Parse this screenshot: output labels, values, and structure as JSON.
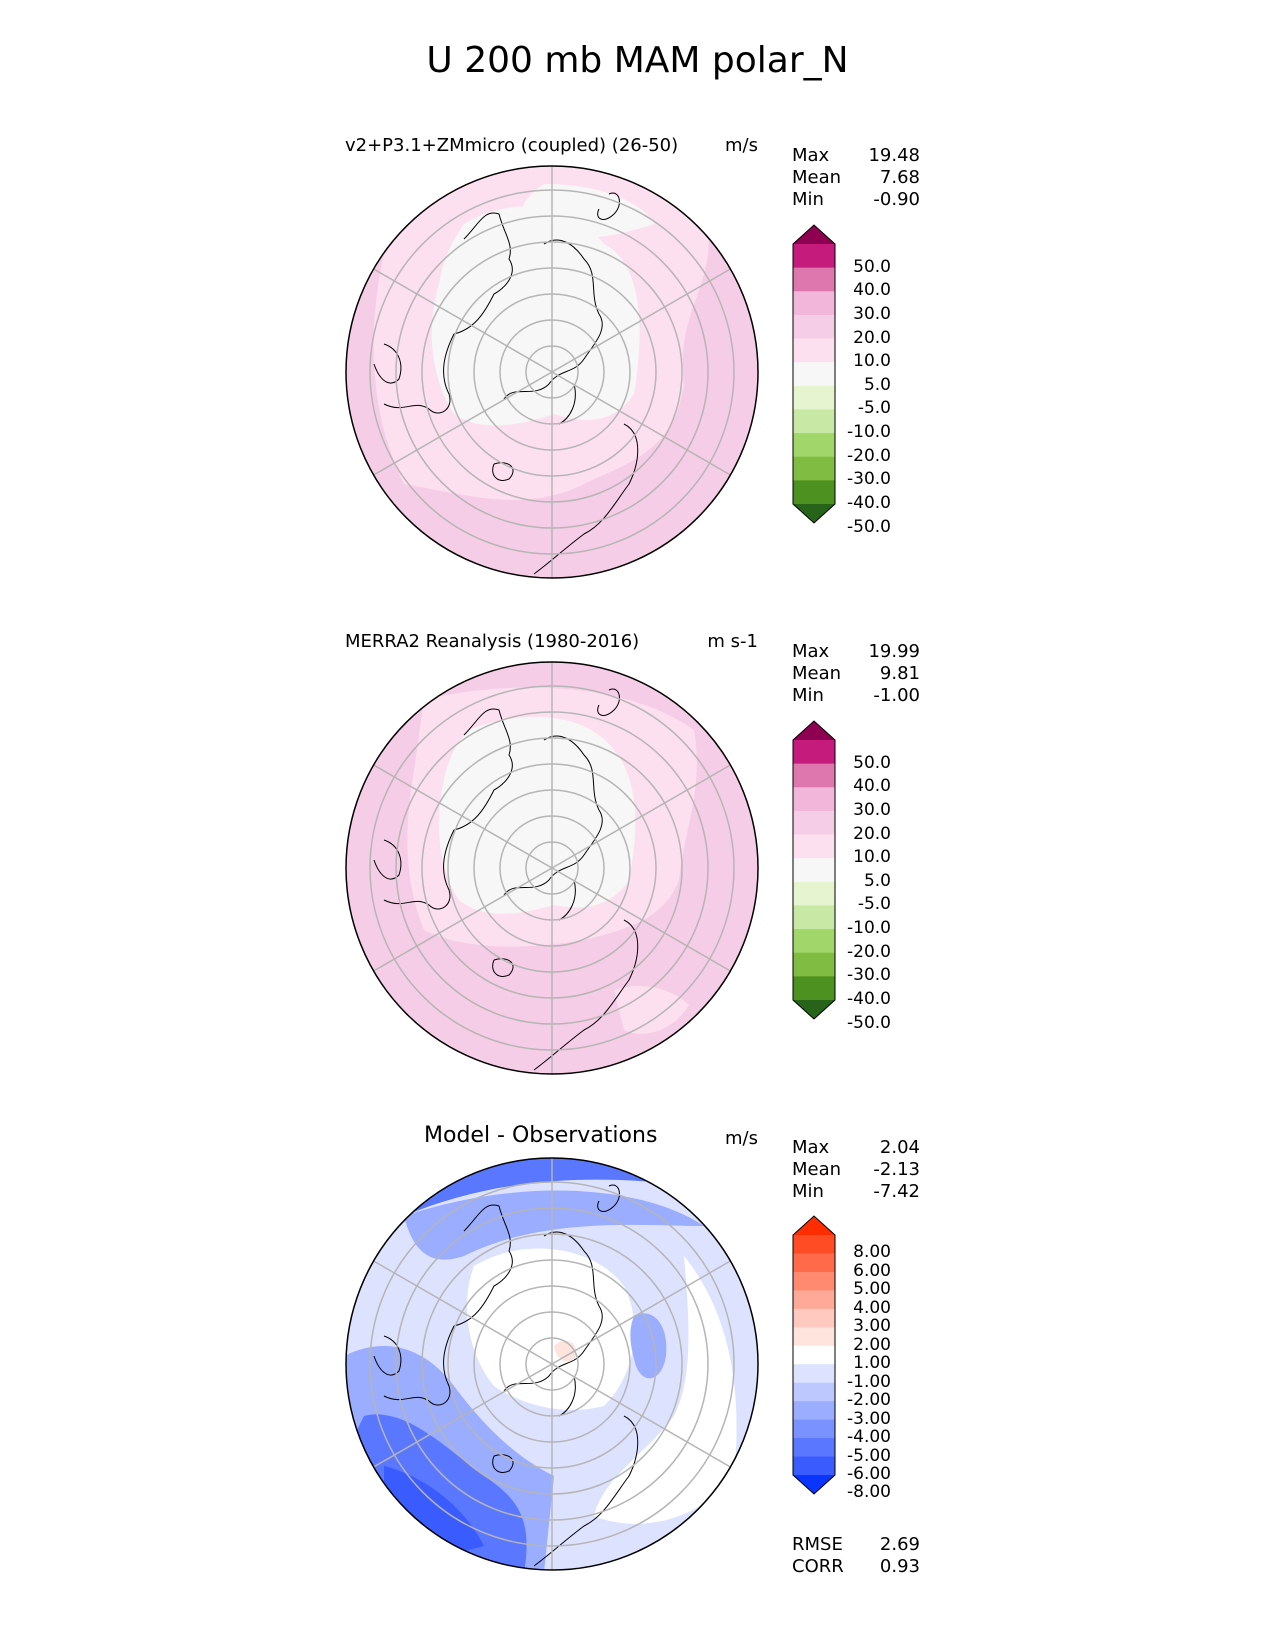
{
  "title": "U 200 mb MAM polar_N",
  "panels": [
    {
      "title": "v2+P3.1+ZMmicro (coupled) (26-50)",
      "units": "m/s",
      "stats": [
        {
          "label": "Max",
          "value": "19.48"
        },
        {
          "label": "Mean",
          "value": "7.68"
        },
        {
          "label": "Min",
          "value": "-0.90"
        }
      ],
      "colorbar": {
        "ticks": [
          "50.0",
          "40.0",
          "30.0",
          "20.0",
          "10.0",
          "5.0",
          "-5.0",
          "-10.0",
          "-20.0",
          "-30.0",
          "-40.0",
          "-50.0"
        ],
        "colors": [
          "#8e0152",
          "#c51b7d",
          "#de77ae",
          "#f1b6da",
          "#f6cde6",
          "#fde0ef",
          "#f7f7f7",
          "#e6f5d0",
          "#c7e9a5",
          "#a1d76a",
          "#7fbc41",
          "#4d9221",
          "#276419"
        ]
      }
    },
    {
      "title": "MERRA2 Reanalysis (1980-2016)",
      "units": "m s-1",
      "stats": [
        {
          "label": "Max",
          "value": "19.99"
        },
        {
          "label": "Mean",
          "value": "9.81"
        },
        {
          "label": "Min",
          "value": "-1.00"
        }
      ],
      "colorbar": {
        "ticks": [
          "50.0",
          "40.0",
          "30.0",
          "20.0",
          "10.0",
          "5.0",
          "-5.0",
          "-10.0",
          "-20.0",
          "-30.0",
          "-40.0",
          "-50.0"
        ],
        "colors": [
          "#8e0152",
          "#c51b7d",
          "#de77ae",
          "#f1b6da",
          "#f6cde6",
          "#fde0ef",
          "#f7f7f7",
          "#e6f5d0",
          "#c7e9a5",
          "#a1d76a",
          "#7fbc41",
          "#4d9221",
          "#276419"
        ]
      }
    },
    {
      "title": "Model - Observations",
      "units": "m/s",
      "stats": [
        {
          "label": "Max",
          "value": "2.04"
        },
        {
          "label": "Mean",
          "value": "-2.13"
        },
        {
          "label": "Min",
          "value": "-7.42"
        }
      ],
      "colorbar": {
        "ticks": [
          "8.00",
          "6.00",
          "5.00",
          "4.00",
          "3.00",
          "2.00",
          "1.00",
          "-1.00",
          "-2.00",
          "-3.00",
          "-4.00",
          "-5.00",
          "-6.00",
          "-8.00"
        ],
        "colors": [
          "#ff2d00",
          "#ff4c24",
          "#ff6a4a",
          "#ff8a70",
          "#ffaa98",
          "#ffc9bf",
          "#ffe3dd",
          "#ffffff",
          "#dde3ff",
          "#bcc8ff",
          "#9aadff",
          "#7a92ff",
          "#5a77ff",
          "#3a5cff",
          "#0a35ff"
        ]
      },
      "extra_stats": [
        {
          "label": "RMSE",
          "value": "2.69"
        },
        {
          "label": "CORR",
          "value": "0.93"
        }
      ]
    }
  ],
  "chart_data": [
    {
      "type": "heatmap",
      "title": "v2+P3.1+ZMmicro (coupled) (26-50)",
      "projection": "north polar stereographic",
      "units": "m/s",
      "levels": [
        -50,
        -40,
        -30,
        -20,
        -10,
        -5,
        5,
        10,
        20,
        30,
        40,
        50
      ],
      "stats": {
        "max": 19.48,
        "mean": 7.68,
        "min": -0.9
      }
    },
    {
      "type": "heatmap",
      "title": "MERRA2 Reanalysis (1980-2016)",
      "projection": "north polar stereographic",
      "units": "m s-1",
      "levels": [
        -50,
        -40,
        -30,
        -20,
        -10,
        -5,
        5,
        10,
        20,
        30,
        40,
        50
      ],
      "stats": {
        "max": 19.99,
        "mean": 9.81,
        "min": -1.0
      }
    },
    {
      "type": "heatmap",
      "title": "Model - Observations",
      "projection": "north polar stereographic",
      "units": "m/s",
      "levels": [
        -8,
        -6,
        -5,
        -4,
        -3,
        -2,
        -1,
        1,
        2,
        3,
        4,
        5,
        6,
        8
      ],
      "stats": {
        "max": 2.04,
        "mean": -2.13,
        "min": -7.42,
        "rmse": 2.69,
        "corr": 0.93
      }
    }
  ]
}
